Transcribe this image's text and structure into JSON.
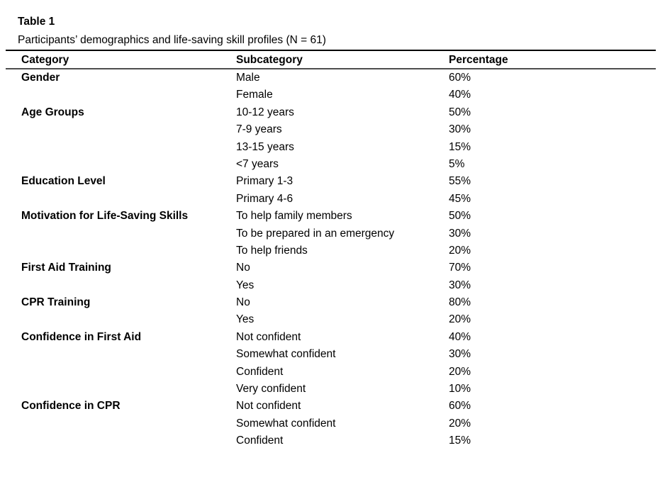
{
  "table": {
    "label": "Table 1",
    "caption": "Participants’ demographics and life-saving skill profiles (N = 61)",
    "sample_size": "N = 61",
    "columns": [
      "Category",
      "Subcategory",
      "Percentage"
    ],
    "rows": [
      {
        "category": "Gender",
        "subcategory": "Male",
        "percentage": "60%"
      },
      {
        "category": "",
        "subcategory": "Female",
        "percentage": "40%"
      },
      {
        "category": "Age Groups",
        "subcategory": "10-12 years",
        "percentage": "50%"
      },
      {
        "category": "",
        "subcategory": "7-9 years",
        "percentage": "30%"
      },
      {
        "category": "",
        "subcategory": "13-15 years",
        "percentage": "15%"
      },
      {
        "category": "",
        "subcategory": "<7 years",
        "percentage": "5%"
      },
      {
        "category": "Education Level",
        "subcategory": "Primary 1-3",
        "percentage": "55%"
      },
      {
        "category": "",
        "subcategory": "Primary 4-6",
        "percentage": "45%"
      },
      {
        "category": "Motivation for Life-Saving Skills",
        "subcategory": "To help family members",
        "percentage": "50%"
      },
      {
        "category": "",
        "subcategory": "To be prepared in an emergency",
        "percentage": "30%"
      },
      {
        "category": "",
        "subcategory": "To help friends",
        "percentage": "20%"
      },
      {
        "category": "First Aid Training",
        "subcategory": "No",
        "percentage": "70%"
      },
      {
        "category": "",
        "subcategory": "Yes",
        "percentage": "30%"
      },
      {
        "category": "CPR Training",
        "subcategory": "No",
        "percentage": "80%"
      },
      {
        "category": "",
        "subcategory": "Yes",
        "percentage": "20%"
      },
      {
        "category": "Confidence in First Aid",
        "subcategory": "Not confident",
        "percentage": "40%"
      },
      {
        "category": "",
        "subcategory": "Somewhat confident",
        "percentage": "30%"
      },
      {
        "category": "",
        "subcategory": "Confident",
        "percentage": "20%"
      },
      {
        "category": "",
        "subcategory": "Very confident",
        "percentage": "10%"
      },
      {
        "category": "Confidence in CPR",
        "subcategory": "Not confident",
        "percentage": "60%"
      },
      {
        "category": "",
        "subcategory": "Somewhat confident",
        "percentage": "20%"
      },
      {
        "category": "",
        "subcategory": "Confident",
        "percentage": "15%"
      }
    ],
    "colors": {
      "text": "#000000",
      "background": "#ffffff",
      "top_rule": "#000000",
      "header_rule": "#4d4d4d"
    }
  }
}
